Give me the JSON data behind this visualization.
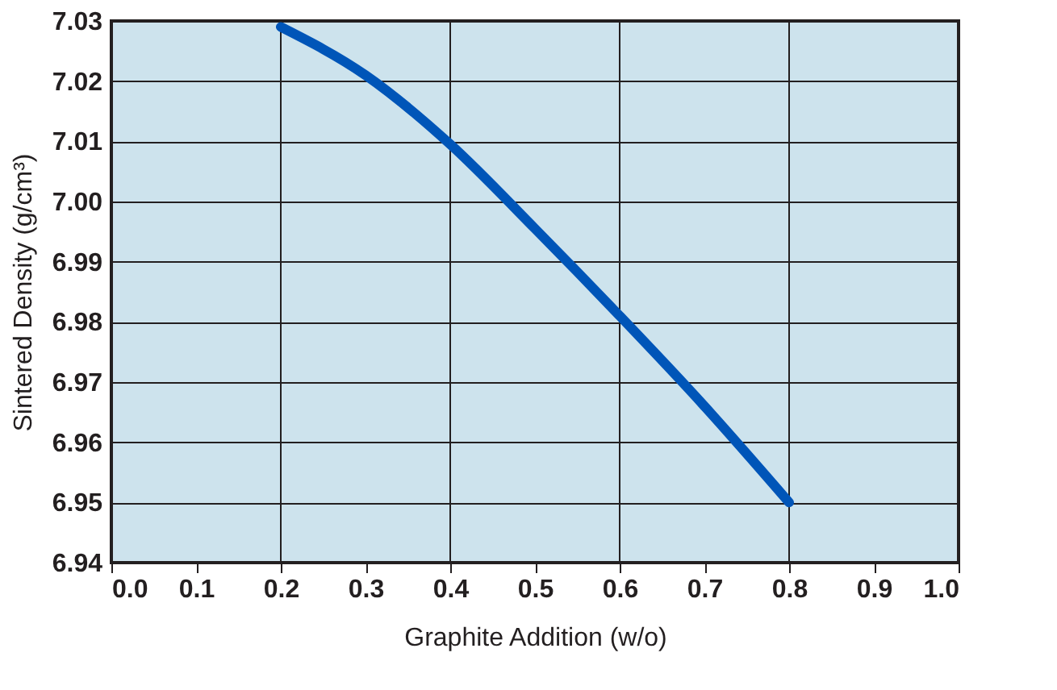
{
  "chart_data": {
    "type": "line",
    "xlabel": "Graphite Addition (w/o)",
    "ylabel": "Sintered Density (g/cm³)",
    "x": [
      0.2,
      0.3,
      0.4,
      0.5,
      0.6,
      0.7,
      0.8
    ],
    "series": [
      {
        "color": "#0055b8",
        "values": [
          7.029,
          7.021,
          7.0095,
          6.9955,
          6.981,
          6.966,
          6.95
        ]
      }
    ],
    "xlim": [
      0,
      1
    ],
    "xticks": [
      {
        "value": 0,
        "label": "0.0"
      },
      0.1,
      0.2,
      0.3,
      0.4,
      0.5,
      0.6,
      0.7,
      0.8,
      0.9,
      {
        "value": 1,
        "label": "1.0"
      }
    ],
    "ylim": [
      6.94,
      7.03
    ],
    "yticks": [
      {
        "value": 6.94,
        "label": "6.94"
      },
      {
        "value": 6.95,
        "label": "6.95"
      },
      {
        "value": 6.96,
        "label": "6.96"
      },
      {
        "value": 6.97,
        "label": "6.97"
      },
      {
        "value": 6.98,
        "label": "6.98"
      },
      {
        "value": 6.99,
        "label": "6.99"
      },
      {
        "value": 7.0,
        "label": "7.00"
      },
      {
        "value": 7.01,
        "label": "7.01"
      },
      {
        "value": 7.02,
        "label": "7.02"
      },
      {
        "value": 7.03,
        "label": "7.03"
      }
    ],
    "grid": true,
    "marker": "none",
    "line_style": "solid"
  }
}
